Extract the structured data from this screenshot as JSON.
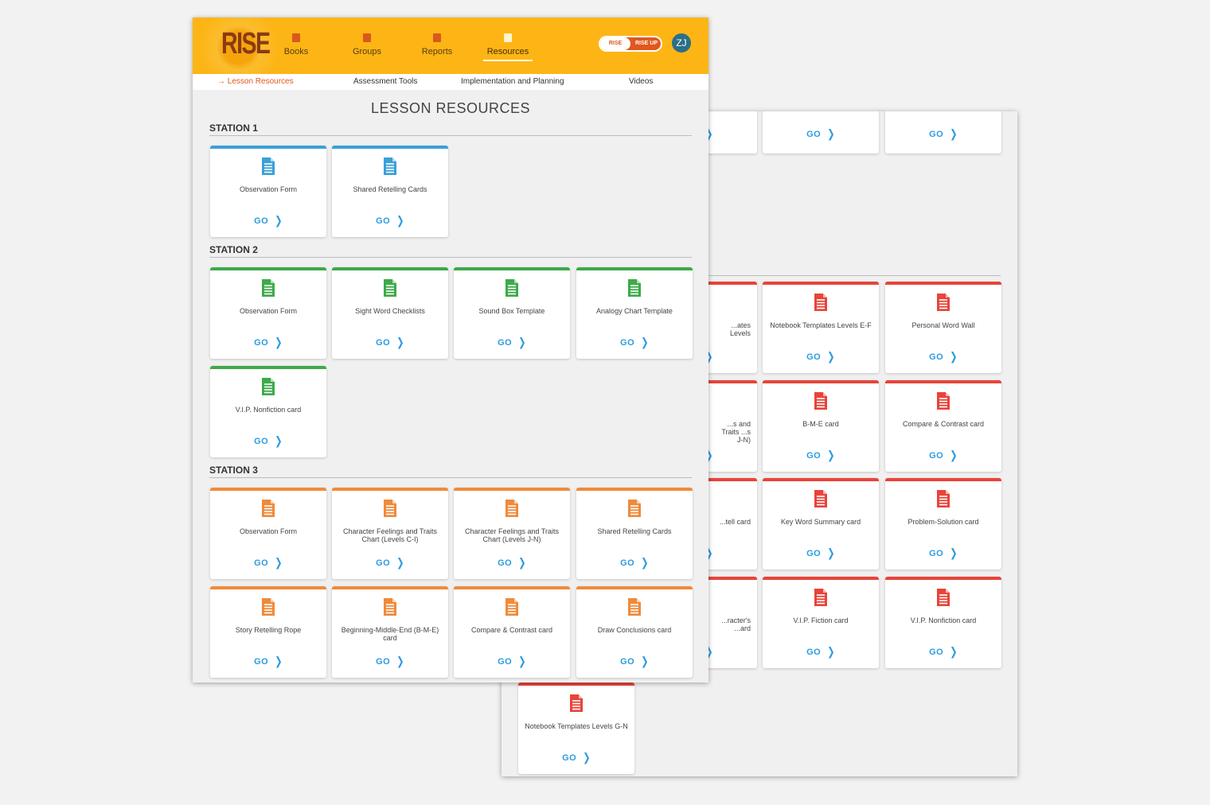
{
  "colors": {
    "station1": "#3aa0d8",
    "station2": "#3daa4a",
    "station3": "#f08a3a",
    "station4": "#e8443a",
    "go": "#2a9be0",
    "header": "#fdb515"
  },
  "header": {
    "logo": "RISE",
    "nav": [
      {
        "label": "Books",
        "icon": "book-icon"
      },
      {
        "label": "Groups",
        "icon": "groups-icon"
      },
      {
        "label": "Reports",
        "icon": "bar-chart-icon"
      },
      {
        "label": "Resources",
        "icon": "document-icon",
        "active": true
      }
    ],
    "toggle": {
      "left": "RISE",
      "right": "RISE UP",
      "selected": "RISE"
    },
    "avatar": "ZJ"
  },
  "subnav": [
    {
      "label": "Lesson Resources",
      "active": true
    },
    {
      "label": "Assessment Tools"
    },
    {
      "label": "Implementation and Planning"
    },
    {
      "label": "Videos"
    }
  ],
  "page_title": "LESSON RESOURCES",
  "go_label": "GO",
  "stations": [
    {
      "title": "STATION 1",
      "color": "#3aa0d8",
      "cards": [
        "Observation Form",
        "Shared Retelling Cards"
      ]
    },
    {
      "title": "STATION 2",
      "color": "#3daa4a",
      "cards": [
        "Observation Form",
        "Sight Word Checklists",
        "Sound Box Template",
        "Analogy Chart Template",
        "V.I.P. Nonfiction card"
      ]
    },
    {
      "title": "STATION 3",
      "color": "#f08a3a",
      "cards": [
        "Observation Form",
        "Character Feelings and Traits Chart (Levels C-I)",
        "Character Feelings and Traits Chart (Levels J-N)",
        "Shared Retelling Cards",
        "Story Retelling Rope",
        "Beginning-Middle-End (B-M-E) card",
        "Compare & Contrast card",
        "Draw Conclusions card"
      ]
    }
  ],
  "back_panel": {
    "top_row": [
      "",
      "",
      ""
    ],
    "rows": [
      [
        "...ates Levels",
        "Notebook Templates Levels E-F",
        "Personal Word Wall"
      ],
      [
        "...s and Traits ...s J-N)",
        "B-M-E card",
        "Compare & Contrast card"
      ],
      [
        "...tell card",
        "Key Word Summary card",
        "Problem-Solution card"
      ],
      [
        "...racter's ...ard",
        "V.I.P. Fiction card",
        "V.I.P. Nonfiction card"
      ]
    ],
    "last": "Notebook Templates Levels G-N"
  }
}
